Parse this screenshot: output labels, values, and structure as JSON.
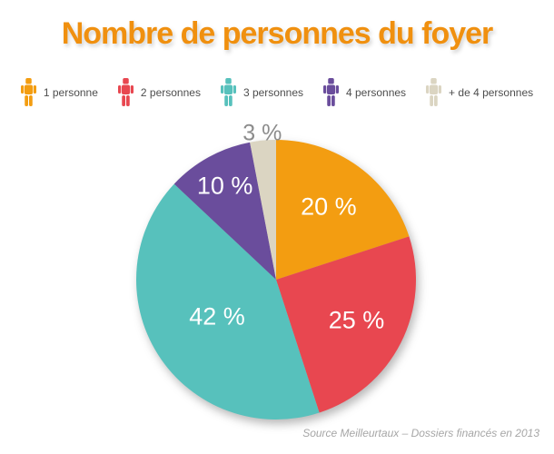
{
  "chart_data": {
    "type": "pie",
    "title": "Nombre de personnes du foyer",
    "categories": [
      "1 personne",
      "2 personnes",
      "3 personnes",
      "4 personnes",
      "+ de 4 personnes"
    ],
    "values": [
      20,
      25,
      42,
      10,
      3
    ],
    "slice_labels": [
      "20 %",
      "25 %",
      "42 %",
      "10 %",
      "3 %"
    ],
    "colors": [
      "#F39D11",
      "#E84750",
      "#57C1BC",
      "#6A4D9C",
      "#DBD5C2"
    ],
    "start_angle_deg": 0,
    "direction": "clockwise",
    "legend_position": "top",
    "inside_label_color": "#FFFFFF",
    "outside_label_color": "#8C8C8C"
  },
  "theme": {
    "title_color": "#F0900F",
    "legend_text_color": "#4D4D4D",
    "source_text_color": "#A6A6A6",
    "background": "#FFFFFF"
  },
  "footer": {
    "source": "Source Meilleurtaux – Dossiers financés en 2013"
  }
}
